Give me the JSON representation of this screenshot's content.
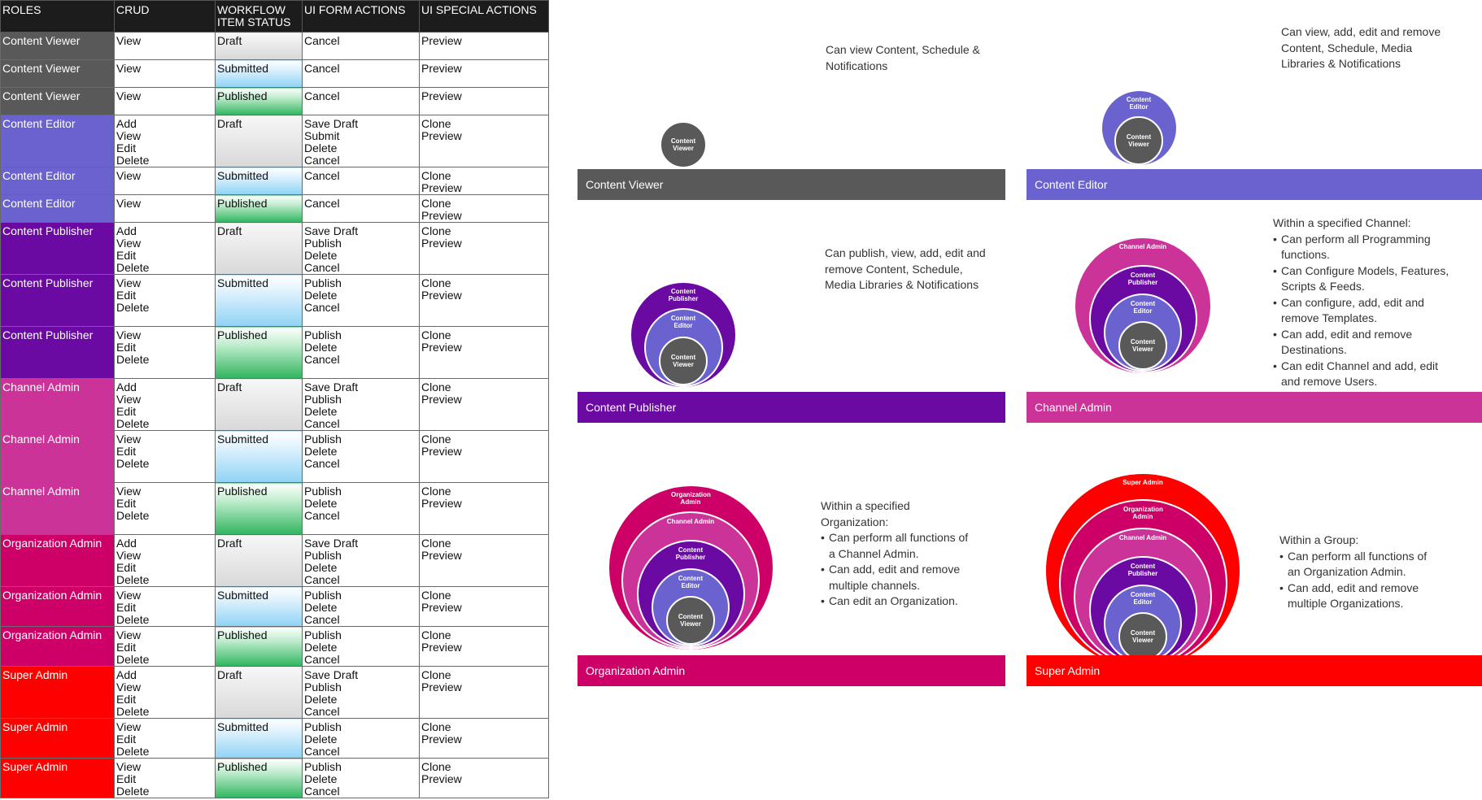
{
  "colors": {
    "header": "#1c1c1c",
    "content_viewer": "#595959",
    "content_editor": "#6a63cf",
    "content_publisher": "#6a0aa3",
    "channel_admin": "#cc3399",
    "organization_admin": "#cc0066",
    "super_admin": "#ff0000"
  },
  "table": {
    "headers": [
      "ROLES",
      "CRUD",
      "WORKFLOW ITEM STATUS",
      "UI FORM ACTIONS",
      "UI SPECIAL ACTIONS"
    ],
    "rows": [
      {
        "role": "Content Viewer",
        "crud": [
          "View"
        ],
        "status": "Draft",
        "form": [
          "Cancel"
        ],
        "special": [
          "Preview"
        ]
      },
      {
        "role": "Content Viewer",
        "crud": [
          "View"
        ],
        "status": "Submitted",
        "form": [
          "Cancel"
        ],
        "special": [
          "Preview"
        ]
      },
      {
        "role": "Content Viewer",
        "crud": [
          "View"
        ],
        "status": "Published",
        "form": [
          "Cancel"
        ],
        "special": [
          "Preview"
        ]
      },
      {
        "role": "Content Editor",
        "crud": [
          "Add",
          "View",
          "Edit",
          "Delete"
        ],
        "status": "Draft",
        "form": [
          "Save Draft",
          "Submit",
          "Delete",
          "Cancel"
        ],
        "special": [
          "Clone",
          "Preview"
        ]
      },
      {
        "role": "Content Editor",
        "crud": [
          "View"
        ],
        "status": "Submitted",
        "form": [
          "Cancel"
        ],
        "special": [
          "Clone",
          "Preview"
        ]
      },
      {
        "role": "Content Editor",
        "crud": [
          "View"
        ],
        "status": "Published",
        "form": [
          "Cancel"
        ],
        "special": [
          "Clone",
          "Preview"
        ]
      },
      {
        "role": "Content Publisher",
        "crud": [
          "Add",
          "View",
          "Edit",
          "Delete"
        ],
        "status": "Draft",
        "form": [
          "Save Draft",
          "Publish",
          "Delete",
          "Cancel"
        ],
        "special": [
          "Clone",
          "Preview"
        ]
      },
      {
        "role": "Content Publisher",
        "crud": [
          "View",
          "Edit",
          "Delete"
        ],
        "status": "Submitted",
        "form": [
          "Publish",
          "Delete",
          "Cancel"
        ],
        "special": [
          "Clone",
          "Preview"
        ]
      },
      {
        "role": "Content Publisher",
        "crud": [
          "View",
          "Edit",
          "Delete"
        ],
        "status": "Published",
        "form": [
          "Publish",
          "Delete",
          "Cancel"
        ],
        "special": [
          "Clone",
          "Preview"
        ]
      },
      {
        "role": "Channel Admin",
        "crud": [
          "Add",
          "View",
          "Edit",
          "Delete"
        ],
        "status": "Draft",
        "form": [
          "Save Draft",
          "Publish",
          "Delete",
          "Cancel"
        ],
        "special": [
          "Clone",
          "Preview"
        ]
      },
      {
        "role": "Channel Admin",
        "crud": [
          "View",
          "Edit",
          "Delete"
        ],
        "status": "Submitted",
        "form": [
          "Publish",
          "Delete",
          "Cancel"
        ],
        "special": [
          "Clone",
          "Preview"
        ]
      },
      {
        "role": "Channel Admin",
        "crud": [
          "View",
          "Edit",
          "Delete"
        ],
        "status": "Published",
        "form": [
          "Publish",
          "Delete",
          "Cancel"
        ],
        "special": [
          "Clone",
          "Preview"
        ]
      },
      {
        "role": "Organization Admin",
        "crud": [
          "Add",
          "View",
          "Edit",
          "Delete"
        ],
        "status": "Draft",
        "form": [
          "Save Draft",
          "Publish",
          "Delete",
          "Cancel"
        ],
        "special": [
          "Clone",
          "Preview"
        ]
      },
      {
        "role": "Organization Admin",
        "crud": [
          "View",
          "Edit",
          "Delete"
        ],
        "status": "Submitted",
        "form": [
          "Publish",
          "Delete",
          "Cancel"
        ],
        "special": [
          "Clone",
          "Preview"
        ]
      },
      {
        "role": "Organization Admin",
        "crud": [
          "View",
          "Edit",
          "Delete"
        ],
        "status": "Published",
        "form": [
          "Publish",
          "Delete",
          "Cancel"
        ],
        "special": [
          "Clone",
          "Preview"
        ]
      },
      {
        "role": "Super Admin",
        "crud": [
          "Add",
          "View",
          "Edit",
          "Delete"
        ],
        "status": "Draft",
        "form": [
          "Save Draft",
          "Publish",
          "Delete",
          "Cancel"
        ],
        "special": [
          "Clone",
          "Preview"
        ]
      },
      {
        "role": "Super Admin",
        "crud": [
          "View",
          "Edit",
          "Delete"
        ],
        "status": "Submitted",
        "form": [
          "Publish",
          "Delete",
          "Cancel"
        ],
        "special": [
          "Clone",
          "Preview"
        ]
      },
      {
        "role": "Super Admin",
        "crud": [
          "View",
          "Edit",
          "Delete"
        ],
        "status": "Published",
        "form": [
          "Publish",
          "Delete",
          "Cancel"
        ],
        "special": [
          "Clone",
          "Preview"
        ]
      }
    ]
  },
  "panels": [
    {
      "key": "content_viewer",
      "label": "Content Viewer",
      "desc_intro": "Can view Content, Schedule & Notifications",
      "desc_items": [],
      "rings": [
        "Content Viewer"
      ]
    },
    {
      "key": "content_editor",
      "label": "Content Editor",
      "desc_intro": "Can view, add, edit and remove Content, Schedule, Media Libraries & Notifications",
      "desc_items": [],
      "rings": [
        "Content Editor",
        "Content Viewer"
      ]
    },
    {
      "key": "content_publisher",
      "label": "Content Publisher",
      "desc_intro": "Can publish, view, add, edit and remove Content, Schedule, Media Libraries & Notifications",
      "desc_items": [],
      "rings": [
        "Content Publisher",
        "Content Editor",
        "Content Viewer"
      ]
    },
    {
      "key": "channel_admin",
      "label": "Channel Admin",
      "desc_intro": "Within a specified Channel:",
      "desc_items": [
        "Can perform all Programming functions.",
        "Can Configure Models, Features, Scripts & Feeds.",
        "Can configure, add, edit and remove Templates.",
        "Can add, edit and remove Destinations.",
        "Can edit Channel and add, edit and remove Users."
      ],
      "rings": [
        "Channel Admin",
        "Content Publisher",
        "Content Editor",
        "Content Viewer"
      ]
    },
    {
      "key": "organization_admin",
      "label": "Organization Admin",
      "desc_intro": "Within a specified Organization:",
      "desc_items": [
        "Can perform all functions of a Channel Admin.",
        "Can add, edit and remove multiple channels.",
        "Can edit an Organization."
      ],
      "rings": [
        "Organization Admin",
        "Channel Admin",
        "Content Publisher",
        "Content Editor",
        "Content Viewer"
      ]
    },
    {
      "key": "super_admin",
      "label": "Super Admin",
      "desc_intro": "Within a Group:",
      "desc_items": [
        "Can perform all functions of an Organization Admin.",
        "Can add, edit and remove multiple Organizations."
      ],
      "rings": [
        "Super Admin",
        "Organization Admin",
        "Channel Admin",
        "Content Publisher",
        "Content Editor",
        "Content Viewer"
      ]
    }
  ]
}
